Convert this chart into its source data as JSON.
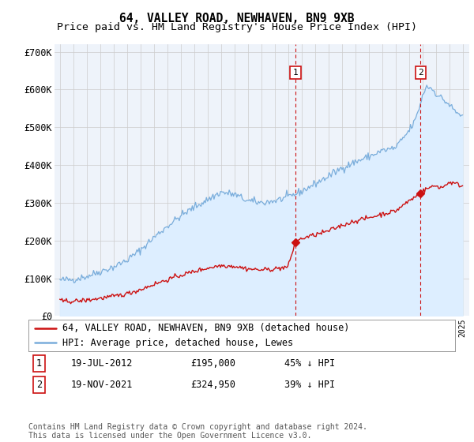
{
  "title": "64, VALLEY ROAD, NEWHAVEN, BN9 9XB",
  "subtitle": "Price paid vs. HM Land Registry's House Price Index (HPI)",
  "ylim": [
    0,
    720000
  ],
  "yticks": [
    0,
    100000,
    200000,
    300000,
    400000,
    500000,
    600000,
    700000
  ],
  "ytick_labels": [
    "£0",
    "£100K",
    "£200K",
    "£300K",
    "£400K",
    "£500K",
    "£600K",
    "£700K"
  ],
  "xlim_start": 1994.6,
  "xlim_end": 2025.5,
  "sale1_date_x": 2012.54,
  "sale1_price": 195000,
  "sale1_label": "19-JUL-2012",
  "sale1_price_str": "£195,000",
  "sale1_pct": "45% ↓ HPI",
  "sale2_date_x": 2021.88,
  "sale2_price": 324950,
  "sale2_label": "19-NOV-2021",
  "sale2_price_str": "£324,950",
  "sale2_pct": "39% ↓ HPI",
  "hpi_color": "#7aaddb",
  "hpi_fill_color": "#ddeeff",
  "price_color": "#cc1111",
  "dashed_line_color": "#cc1111",
  "legend_line1": "64, VALLEY ROAD, NEWHAVEN, BN9 9XB (detached house)",
  "legend_line2": "HPI: Average price, detached house, Lewes",
  "footer": "Contains HM Land Registry data © Crown copyright and database right 2024.\nThis data is licensed under the Open Government Licence v3.0.",
  "plot_bg_color": "#eef3fa",
  "grid_color": "#cccccc",
  "title_fontsize": 10.5,
  "subtitle_fontsize": 9.5,
  "axis_fontsize": 8.5,
  "legend_fontsize": 8.5,
  "footer_fontsize": 7.0
}
